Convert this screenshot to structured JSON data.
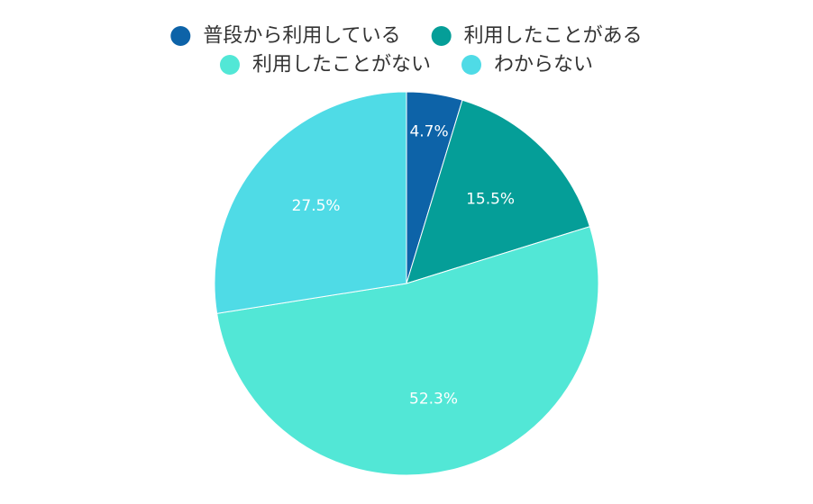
{
  "chart_data": {
    "type": "pie",
    "legend_position": "top",
    "start_angle": "12 o'clock, clockwise",
    "label_suffix": "%",
    "slices": [
      {
        "label": "普段から利用している",
        "value": 4.7,
        "display": "4.7%",
        "color": "#0d63a8"
      },
      {
        "label": "利用したことがある",
        "value": 15.5,
        "display": "15.5%",
        "color": "#059e98"
      },
      {
        "label": "利用したことがない",
        "value": 52.3,
        "display": "52.3%",
        "color": "#52e7d6"
      },
      {
        "label": "わからない",
        "value": 27.5,
        "display": "27.5%",
        "color": "#4fdbe6"
      }
    ]
  }
}
